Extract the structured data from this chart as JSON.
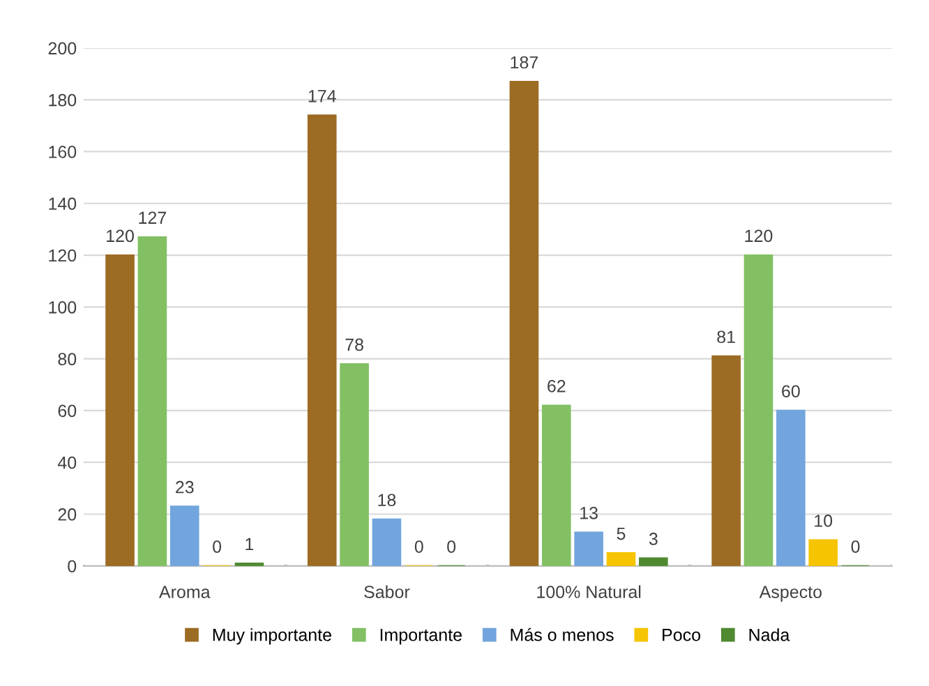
{
  "chart_data": {
    "type": "bar",
    "categories": [
      "Aroma",
      "Sabor",
      "100% Natural",
      "Aspecto"
    ],
    "series": [
      {
        "name": "Muy importante",
        "color": "#9c6b24",
        "values": [
          120,
          174,
          187,
          81
        ]
      },
      {
        "name": "Importante",
        "color": "#82c063",
        "values": [
          127,
          78,
          62,
          120
        ]
      },
      {
        "name": "Más o menos",
        "color": "#72a5dd",
        "values": [
          23,
          18,
          13,
          60
        ]
      },
      {
        "name": "Poco",
        "color": "#f6c400",
        "values": [
          0,
          0,
          5,
          10
        ]
      },
      {
        "name": "Nada",
        "color": "#4f8a31",
        "values": [
          1,
          0,
          3,
          0
        ]
      }
    ],
    "ylim": [
      0,
      200
    ],
    "yticks": [
      0,
      20,
      40,
      60,
      80,
      100,
      120,
      140,
      160,
      180,
      200
    ],
    "grid": "y",
    "legend": "bottom",
    "data_labels": true
  }
}
